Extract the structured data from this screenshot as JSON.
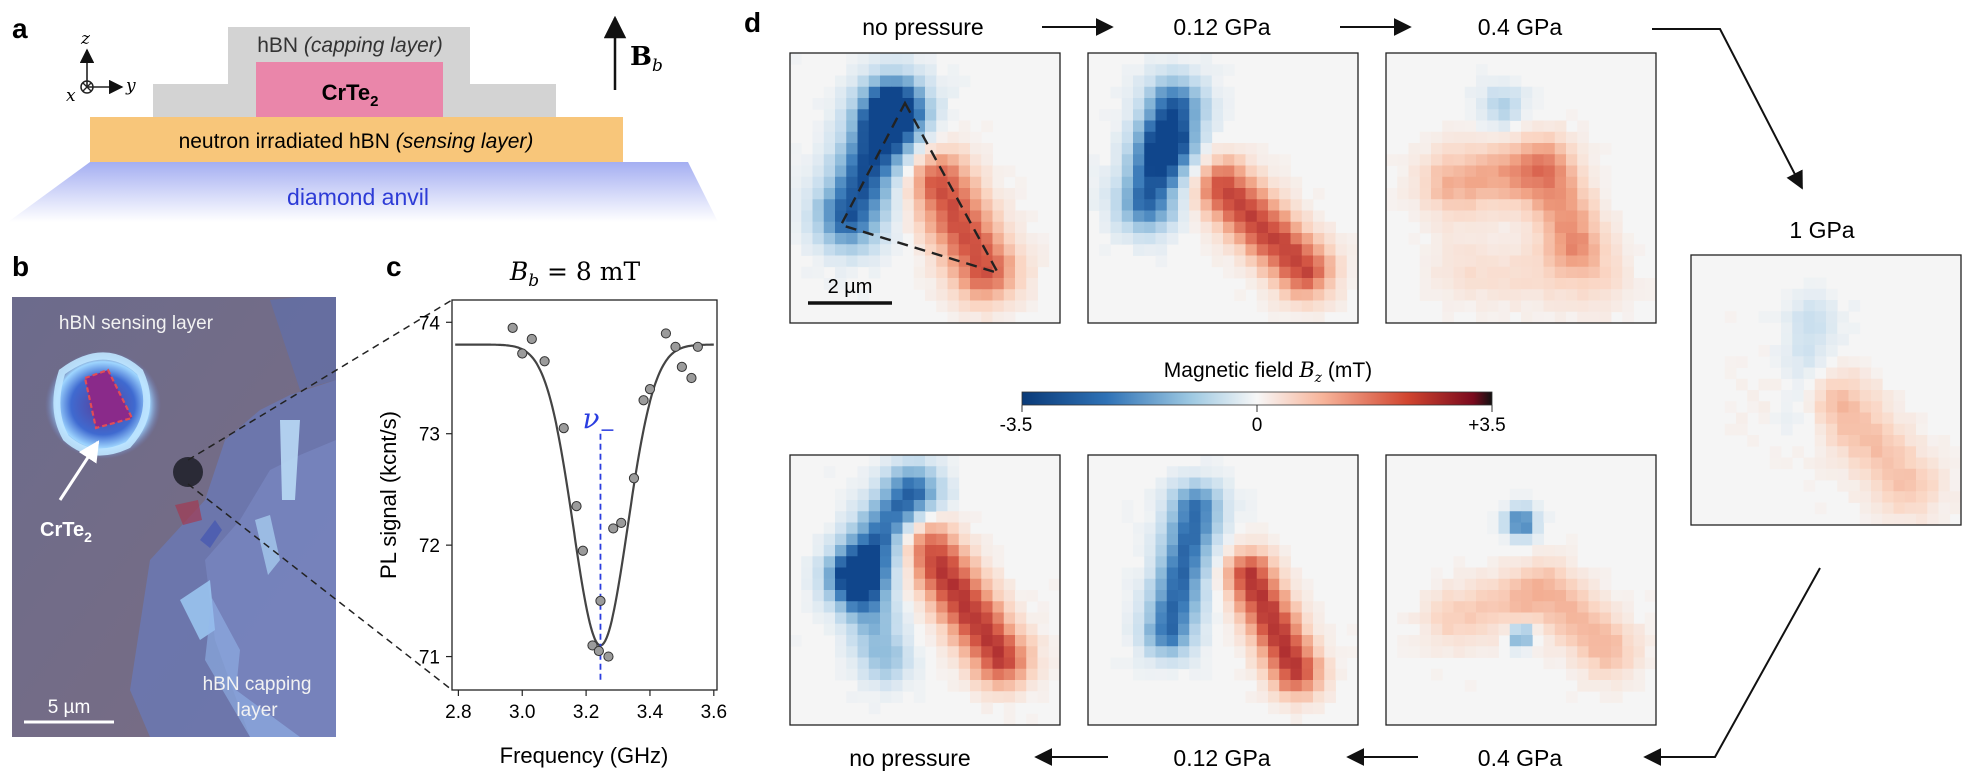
{
  "panel_labels": {
    "a": "a",
    "b": "b",
    "c": "c",
    "d": "d"
  },
  "panel_a": {
    "capping_prefix": "hBN",
    "capping_note": "(capping layer)",
    "sample_main": "CrTe",
    "sample_sub": "2",
    "sensing_prefix": "neutron irradiated hBN",
    "sensing_note": "(sensing layer)",
    "substrate": "diamond anvil",
    "field_symbol": "B",
    "field_sub": "b",
    "axis_z": "z",
    "axis_y": "y",
    "axis_x": "x"
  },
  "panel_b": {
    "sensing_label": "hBN sensing layer",
    "capping_line1": "hBN capping",
    "capping_line2": "layer",
    "sample_main": "CrTe",
    "sample_sub": "2",
    "scalebar": "5 µm"
  },
  "panel_c": {
    "title": "B_b = 8 mT",
    "title_sym": "B",
    "title_sub": "b",
    "title_rest": " = 8 mT",
    "resonance_label": "ν",
    "resonance_sub": "−"
  },
  "chart_data": {
    "type": "scatter",
    "title": "B_b = 8 mT",
    "xlabel": "Frequency (GHz)",
    "ylabel": "PL signal (kcnt/s)",
    "xlim": [
      2.78,
      3.61
    ],
    "ylim": [
      70.7,
      74.2
    ],
    "xticks": [
      "2.8",
      "3.0",
      "3.2",
      "3.4",
      "3.6"
    ],
    "yticks": [
      "71",
      "72",
      "73",
      "74"
    ],
    "resonance_GHz": 3.245,
    "fit_baseline_kcnt": 73.8,
    "fit_depth_kcnt": 2.7,
    "fit_width_GHz": 0.085,
    "points": [
      [
        2.97,
        73.95
      ],
      [
        3.0,
        73.72
      ],
      [
        3.03,
        73.85
      ],
      [
        3.07,
        73.65
      ],
      [
        3.13,
        73.05
      ],
      [
        3.17,
        72.35
      ],
      [
        3.19,
        71.95
      ],
      [
        3.22,
        71.1
      ],
      [
        3.245,
        71.5
      ],
      [
        3.24,
        71.05
      ],
      [
        3.27,
        71.0
      ],
      [
        3.285,
        72.15
      ],
      [
        3.31,
        72.2
      ],
      [
        3.35,
        72.6
      ],
      [
        3.38,
        73.3
      ],
      [
        3.4,
        73.4
      ],
      [
        3.45,
        73.9
      ],
      [
        3.48,
        73.78
      ],
      [
        3.5,
        73.6
      ],
      [
        3.53,
        73.5
      ],
      [
        3.55,
        73.78
      ]
    ]
  },
  "panel_d": {
    "colorbar_title": "Magnetic field B_z (mT)",
    "colorbar_prefix": "Magnetic field ",
    "colorbar_sym": "B",
    "colorbar_sub": "z",
    "colorbar_unit": " (mT)",
    "colorbar_min": "-3.5",
    "colorbar_mid": "0",
    "colorbar_max": "+3.5",
    "colorbar_range": [
      -3.5,
      3.5
    ],
    "scalebar": "2 µm",
    "top_labels": [
      "no pressure",
      "0.12 GPa",
      "0.4 GPa"
    ],
    "right_label": "1 GPa",
    "bottom_labels": [
      "no pressure",
      "0.12 GPa",
      "0.4 GPa"
    ]
  },
  "colors": {
    "capping": "#d3d3d3",
    "crte2": "#ea86aa",
    "sensing": "#f8c67a",
    "diamond_top": "#ffffff",
    "diamond_bottom": "#a4aef2",
    "diamond_text": "#2d3bd6",
    "negative": "#2f72b6",
    "positive": "#d1452f",
    "map_background": "#f5f5f5",
    "fit_line": "#444444",
    "resonance_marker": "#2a3de0"
  }
}
